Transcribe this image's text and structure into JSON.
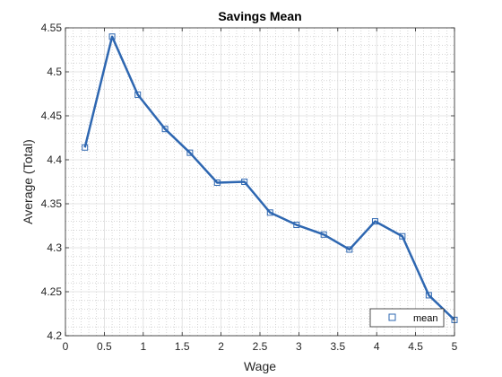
{
  "chart_data": {
    "type": "line",
    "title": "Savings Mean",
    "xlabel": "Wage",
    "ylabel": "Average (Total)",
    "xlim": [
      0,
      5
    ],
    "ylim": [
      4.2,
      4.55
    ],
    "xticks": [
      0,
      0.5,
      1,
      1.5,
      2,
      2.5,
      3,
      3.5,
      4,
      4.5,
      5
    ],
    "xtick_labels": [
      "0",
      "0.5",
      "1",
      "1.5",
      "2",
      "2.5",
      "3",
      "3.5",
      "4",
      "4.5",
      "5"
    ],
    "yticks": [
      4.2,
      4.25,
      4.3,
      4.35,
      4.4,
      4.45,
      4.5,
      4.55
    ],
    "ytick_labels": [
      "4.2",
      "4.25",
      "4.3",
      "4.35",
      "4.4",
      "4.45",
      "4.5",
      "4.55"
    ],
    "grid": true,
    "minor_grid": true,
    "legend_position": "bottom-right",
    "line_color": "#2e67b1",
    "series": [
      {
        "name": "mean",
        "marker": "square",
        "x": [
          0.25,
          0.6,
          0.93,
          1.28,
          1.6,
          1.95,
          2.3,
          2.63,
          2.97,
          3.32,
          3.65,
          3.98,
          4.33,
          4.67,
          5.0
        ],
        "y": [
          4.414,
          4.54,
          4.474,
          4.435,
          4.408,
          4.374,
          4.375,
          4.34,
          4.326,
          4.315,
          4.298,
          4.33,
          4.313,
          4.246,
          4.218
        ]
      }
    ]
  }
}
